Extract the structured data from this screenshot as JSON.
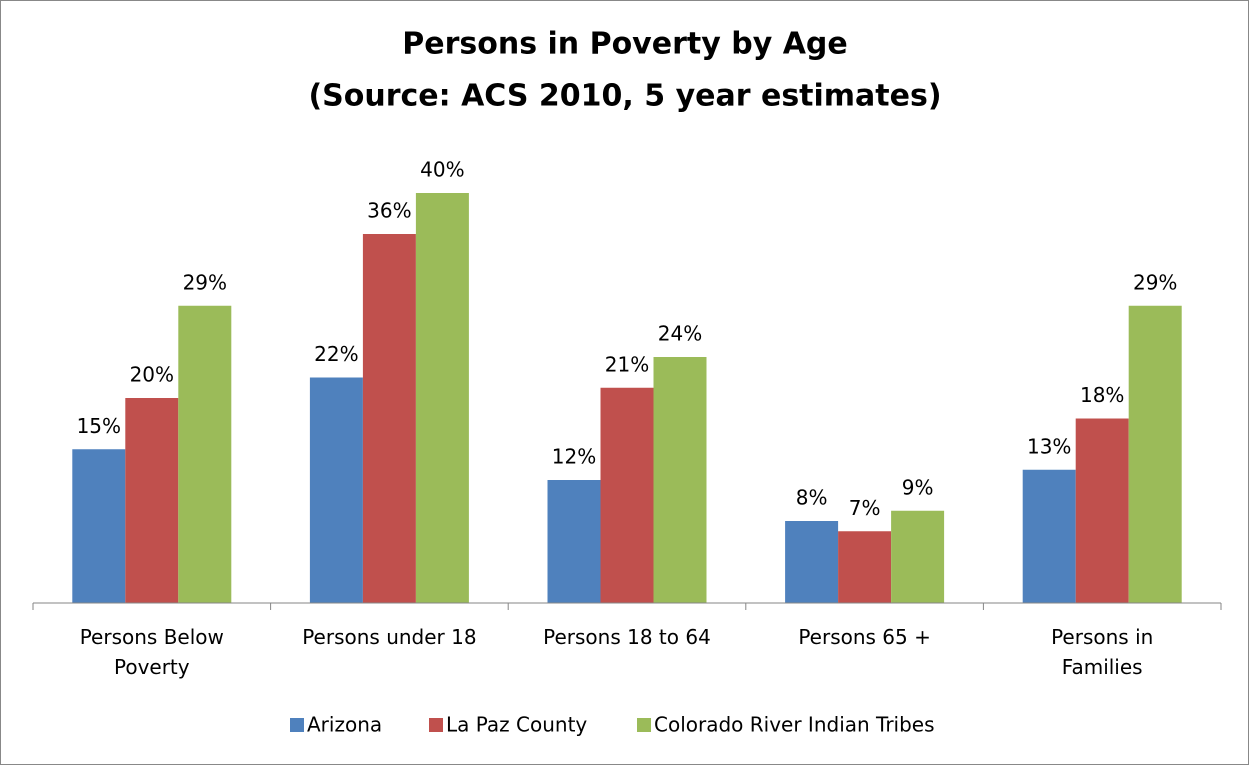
{
  "chart_data": {
    "type": "bar",
    "title": "Persons in Poverty by Age",
    "subtitle": "(Source: ACS 2010, 5 year estimates)",
    "categories": [
      "Persons Below Poverty",
      "Persons under 18",
      "Persons 18 to 64",
      "Persons 65 +",
      "Persons in Families"
    ],
    "series": [
      {
        "name": "Arizona",
        "color": "#4f81bd",
        "values": [
          15,
          22,
          12,
          8,
          13
        ],
        "value_labels": [
          "15%",
          "22%",
          "12%",
          "8%",
          "13%"
        ]
      },
      {
        "name": "La Paz County",
        "color": "#c0504d",
        "values": [
          20,
          36,
          21,
          7,
          18
        ],
        "value_labels": [
          "20%",
          "36%",
          "21%",
          "7%",
          "18%"
        ]
      },
      {
        "name": "Colorado River Indian Tribes",
        "color": "#9bbb59",
        "values": [
          29,
          40,
          24,
          9,
          29
        ],
        "value_labels": [
          "29%",
          "40%",
          "24%",
          "9%",
          "29%"
        ]
      }
    ],
    "legend": "bottom"
  }
}
